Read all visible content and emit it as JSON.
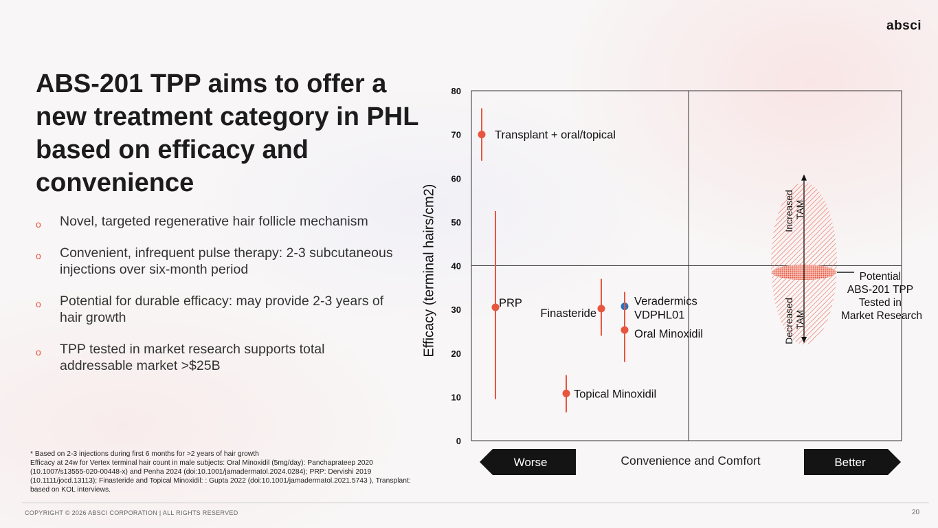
{
  "header": {
    "logo_text": "absci"
  },
  "title": "ABS-201 TPP aims to offer a new treatment category in PHL based on efficacy and convenience",
  "bullet_marker": "o",
  "bullets": [
    "Novel, targeted regenerative hair follicle mechanism",
    "Convenient, infrequent pulse therapy: 2-3 subcutaneous injections over six-month period",
    "Potential for durable efficacy: may provide 2-3 years of hair growth",
    "TPP tested in market research supports total addressable market >$25B"
  ],
  "footnote": [
    "* Based on 2-3 injections during first 6 months for >2 years of hair growth",
    "Efficacy at 24w for Vertex terminal hair count in male subjects: Oral Minoxidil (5mg/day): Panchaprateep 2020 (10.1007/s13555-020-00448-x) and Penha 2024 (doi:10.1001/jamadermatol.2024.0284); PRP: Dervishi 2019 (10.1111/jocd.13113); Finasteride and Topical Minoxidil: : Gupta 2022 (doi:10.1001/jamadermatol.2021.5743 ), Transplant: based on KOL interviews."
  ],
  "footer": {
    "copyright": "COPYRIGHT © 2026 ABSCI CORPORATION | ALL RIGHTS RESERVED",
    "page_number": "20"
  },
  "colors": {
    "accent": "#e8553f",
    "highlight": "#2f72b8",
    "text": "#1c1c1c",
    "arrow_fill": "#141414"
  },
  "chart_data": {
    "type": "scatter",
    "ylabel": "Efficacy (terminal hairs/cm2)",
    "xlabel": "Convenience and Comfort",
    "x_scale": "ordinal (no numeric ticks)",
    "ylim": [
      0,
      80
    ],
    "yticks": [
      "0",
      "10",
      "20",
      "30",
      "40",
      "50",
      "60",
      "70",
      "80"
    ],
    "x_axis_ends": {
      "left": "Worse",
      "right": "Better"
    },
    "points": [
      {
        "label": "Transplant + oral/topical",
        "y": 70,
        "y_low": 64,
        "y_high": 76,
        "color": "#e8553f"
      },
      {
        "label": "PRP",
        "y": 30.5,
        "y_low": 9.5,
        "y_high": 52.5,
        "color": "#e8553f"
      },
      {
        "label": "Finasteride",
        "y": 30.2,
        "y_low": 24,
        "y_high": 37,
        "color": "#e8553f"
      },
      {
        "label": "Veradermics VDPHL01",
        "label_lines": [
          "Veradermics",
          "VDPHL01"
        ],
        "y": 30.7,
        "y_low": 30.7,
        "y_high": 30.7,
        "color": "#2f72b8"
      },
      {
        "label": "Oral Minoxidil",
        "y": 25.3,
        "y_low": 18,
        "y_high": 34,
        "color": "#e8553f"
      },
      {
        "label": "Topical Minoxidil",
        "y": 10.8,
        "y_low": 6.5,
        "y_high": 15,
        "color": "#e8553f"
      }
    ],
    "quadrant_lines": {
      "horizontal_y": 40
    },
    "target_profile": {
      "label_lines": [
        "Potential",
        "ABS-201 TPP",
        "Tested in",
        "Market Research"
      ],
      "center_y": 38.5,
      "y_range": [
        22,
        59
      ],
      "up_label": [
        "Increased",
        "TAM"
      ],
      "down_label": [
        "Decreased",
        "TAM"
      ]
    }
  }
}
